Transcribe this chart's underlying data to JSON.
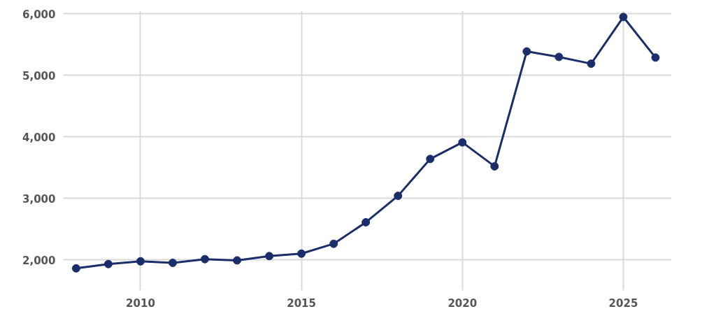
{
  "chart_data": {
    "type": "line",
    "x": [
      2008,
      2009,
      2010,
      2011,
      2012,
      2013,
      2014,
      2015,
      2016,
      2017,
      2018,
      2019,
      2020,
      2021,
      2022,
      2023,
      2024,
      2025,
      2026
    ],
    "series": [
      {
        "color": "#1c2d6b",
        "values": [
          1860,
          1930,
          1975,
          1950,
          2010,
          1990,
          2060,
          2100,
          2260,
          2610,
          3040,
          3640,
          3910,
          3520,
          5390,
          5300,
          5190,
          5950,
          5290
        ]
      }
    ],
    "xlim": [
      2007.6,
      2026.5
    ],
    "ylim": [
      1500,
      6050
    ],
    "xticks": [
      2010,
      2015,
      2020,
      2025
    ],
    "yticks": [
      {
        "value": 2000,
        "label": "2,000"
      },
      {
        "value": 3000,
        "label": "3,000"
      },
      {
        "value": 4000,
        "label": "4,000"
      },
      {
        "value": 5000,
        "label": "5,000"
      },
      {
        "value": 6000,
        "label": "6,000"
      }
    ],
    "grid": true,
    "marker": "circle",
    "line_style": "solid"
  }
}
